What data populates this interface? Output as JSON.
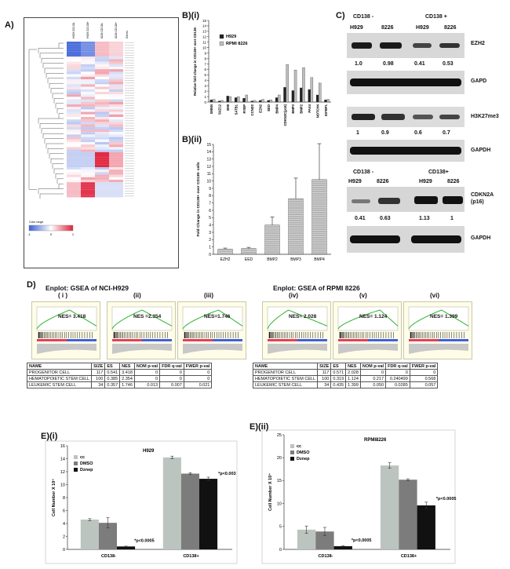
{
  "panels": {
    "a": "A)",
    "bi": "B)(i)",
    "bii": "B)(ii)",
    "c": "C)",
    "d": "D)",
    "ei": "E)(i)",
    "eii": "E)(ii)"
  },
  "heatmap": {
    "columns": [
      "H929 CD138-",
      "H929 CD138+",
      "8226 CD138-",
      "8226 CD138+"
    ],
    "genes_label": "Genes",
    "color_key_label": "Color range",
    "color_key_ticks": [
      "-1",
      "0",
      "1"
    ],
    "colors": {
      "low": "#3a5fd8",
      "mid": "#ffffff",
      "high": "#e0203a"
    }
  },
  "chart_data": [
    {
      "id": "bi",
      "type": "bar",
      "ylabel": "Relative fold change in CD138+ over CD138-",
      "ylim": [
        0,
        15
      ],
      "yticks": [
        0,
        1,
        2,
        3,
        4,
        5,
        6,
        7,
        8,
        9,
        10,
        11,
        12,
        13,
        14,
        15
      ],
      "categories": [
        "SMNN",
        "SUZ12",
        "BMI",
        "SATB1",
        "RYBP",
        "CCND2",
        "EZH2",
        "EED",
        "BMP4",
        "CDKN2C(p18)",
        "BMP3",
        "BMP2",
        "PAX4",
        "NOTCH4",
        "IGFBP1"
      ],
      "series": [
        {
          "name": "H929",
          "color": "#222222",
          "values": [
            0.4,
            0.2,
            1.1,
            0.8,
            0.7,
            0.2,
            0.3,
            0.3,
            0.8,
            2.7,
            2.1,
            2.6,
            2.3,
            1.3,
            0.4
          ]
        },
        {
          "name": "RPMI 8226",
          "color": "#bdbdbd",
          "values": [
            0.5,
            0.3,
            1.0,
            1.0,
            1.3,
            0.3,
            0.5,
            0.4,
            1.3,
            6.9,
            5.9,
            6.3,
            4.5,
            3.5,
            0.5
          ]
        }
      ],
      "legend_position": "top-left"
    },
    {
      "id": "bii",
      "type": "bar",
      "ylabel": "Fold Change in CD138+ over CD138- cells",
      "ylim": [
        0,
        15
      ],
      "yticks": [
        0,
        1,
        2,
        3,
        4,
        5,
        6,
        7,
        8,
        9,
        10,
        11,
        12,
        13,
        14,
        15
      ],
      "categories": [
        "EZH2",
        "EED",
        "BMP2",
        "BMP3",
        "BMP4"
      ],
      "values": [
        0.7,
        0.8,
        4.0,
        7.6,
        10.2
      ],
      "errors": [
        0.15,
        0.15,
        1.1,
        2.8,
        4.9
      ],
      "color": "#9a9a9a"
    },
    {
      "id": "ei",
      "type": "bar",
      "title": "H929",
      "ylabel": "Cell Number X 10⁴",
      "ylim": [
        0,
        16
      ],
      "yticks": [
        0,
        2,
        4,
        6,
        8,
        10,
        12,
        14,
        16
      ],
      "categories": [
        "CD138-",
        "CD138+"
      ],
      "series": [
        {
          "name": "cc",
          "color": "#bcc4bf",
          "values": [
            4.6,
            14.2
          ],
          "errors": [
            0.15,
            0.2
          ]
        },
        {
          "name": "DMSO",
          "color": "#7c7c7c",
          "values": [
            4.1,
            11.7
          ],
          "errors": [
            0.8,
            0.15
          ]
        },
        {
          "name": "Dznep",
          "color": "#111111",
          "values": [
            0.45,
            10.9
          ],
          "errors": [
            0.05,
            0.25
          ]
        }
      ],
      "annotations": [
        "*p<0.0005",
        "*p<0.003"
      ],
      "legend_position": "top-left"
    },
    {
      "id": "eii",
      "type": "bar",
      "title": "RPMI8226",
      "ylabel": "Cell Number X 10⁴",
      "ylim": [
        0,
        25
      ],
      "yticks": [
        0,
        5,
        10,
        15,
        20,
        25
      ],
      "categories": [
        "CD138-",
        "CD138+"
      ],
      "series": [
        {
          "name": "cc",
          "color": "#bcc4bf",
          "values": [
            4.3,
            18.3
          ],
          "errors": [
            0.8,
            0.6
          ]
        },
        {
          "name": "DMSO",
          "color": "#7c7c7c",
          "values": [
            3.9,
            15.2
          ],
          "errors": [
            0.9,
            0.2
          ]
        },
        {
          "name": "Dznep",
          "color": "#111111",
          "values": [
            0.7,
            9.6
          ],
          "errors": [
            0.1,
            0.7
          ]
        }
      ],
      "annotations": [
        "*p<0.0005",
        "*p<0.0005"
      ],
      "legend_position": "top-left"
    }
  ],
  "western": {
    "header1": {
      "neg": "CD138 -",
      "pos": "CD138 +",
      "lanes": [
        "H929",
        "8226",
        "H929",
        "8226"
      ]
    },
    "blot1": "EZH2",
    "blot1_values": [
      "1.0",
      "0.98",
      "0.41",
      "0.53"
    ],
    "blot2": "GAPD",
    "blot3": "H3K27me3",
    "blot3_values": [
      "1",
      "0.9",
      "0.6",
      "0.7"
    ],
    "blot4": "GAPDH",
    "header2": {
      "neg": "CD138 -",
      "pos": "CD138+",
      "lanes": [
        "H929",
        "8226",
        "H929",
        "8226"
      ]
    },
    "blot5": "CDKN2A\n(p16)",
    "blot5_values": [
      "0.41",
      "0.63",
      "1.13",
      "1"
    ],
    "blot6": "GAPDH"
  },
  "gsea": {
    "title_left": "Enplot: GSEA of NCI-H929",
    "title_right": "Enplot: GSEA of RPMI 8226",
    "plots": [
      {
        "roman": "( i )",
        "nes": "NES= 3.418"
      },
      {
        "roman": "(ii)",
        "nes": "NES =2.354"
      },
      {
        "roman": "(iii)",
        "nes": "NES=1.746"
      },
      {
        "roman": "(iv)",
        "nes": "NES= 2.028"
      },
      {
        "roman": "(v)",
        "nes": "NES= 1.124"
      },
      {
        "roman": "(vi)",
        "nes": "NES= 1.399"
      }
    ],
    "table_headers": [
      "NAME",
      "SIZE",
      "ES",
      "NES",
      "NOM p-val",
      "FDR q-val",
      "FWER p-val"
    ],
    "table_left": [
      [
        "PROGENITOR CELL",
        "117",
        "0.541",
        "3.418",
        "0",
        "0",
        "0"
      ],
      [
        "HEMATOPOIETIC STEM CELL",
        "100",
        "0.385",
        "2.354",
        "0",
        "0",
        "0"
      ],
      [
        "LEUKEMIC STEM CELL",
        "34",
        "0.357",
        "1.746",
        "0.013",
        "0.007",
        "0.021"
      ]
    ],
    "table_right": [
      [
        "PROGENITOR CELL",
        "117",
        "0.571",
        "2.028",
        "0",
        "0",
        "0"
      ],
      [
        "HEMATOPOIETIC STEM CELL",
        "100",
        "0.319",
        "1.124",
        "0.217",
        "0.240499",
        "0.568"
      ],
      [
        "LEUKEMIC STEM CELL",
        "34",
        "0.435",
        "1.399",
        "0.050",
        "0.0285",
        "0.057"
      ]
    ]
  }
}
